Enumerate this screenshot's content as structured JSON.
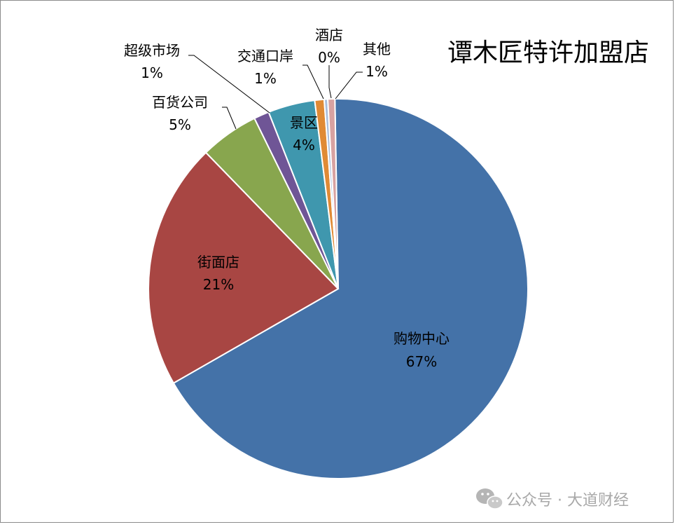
{
  "chart_data": {
    "type": "pie",
    "title": "谭木匠特许加盟店",
    "start_angle_deg": -1,
    "slices": [
      {
        "name": "购物中心",
        "value": 67,
        "label": "67%",
        "color": "#4472A8"
      },
      {
        "name": "街面店",
        "value": 21,
        "label": "21%",
        "color": "#A84643"
      },
      {
        "name": "百货公司",
        "value": 5,
        "label": "5%",
        "color": "#88A64E"
      },
      {
        "name": "超级市场",
        "value": 1.3,
        "label": "1%",
        "color": "#6F5596"
      },
      {
        "name": "景区",
        "value": 4,
        "label": "4%",
        "color": "#3F97AE"
      },
      {
        "name": "交通口岸",
        "value": 0.8,
        "label": "1%",
        "color": "#E08A35"
      },
      {
        "name": "酒店",
        "value": 0.3,
        "label": "0%",
        "color": "#A9BDDC"
      },
      {
        "name": "其他",
        "value": 0.6,
        "label": "1%",
        "color": "#D8A2A1"
      }
    ]
  },
  "watermark": {
    "text": "公众号 · 大道财经",
    "icon": "wechat-icon"
  }
}
